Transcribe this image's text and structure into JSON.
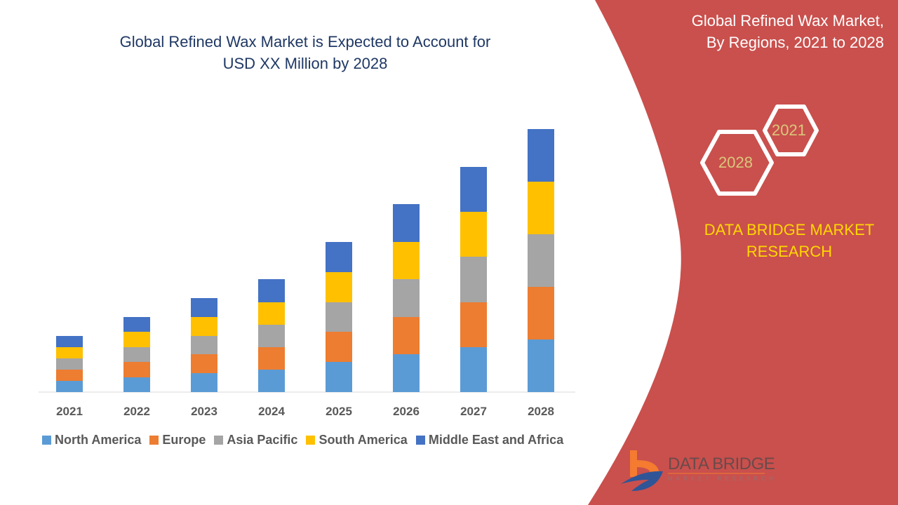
{
  "chart_data": {
    "type": "bar",
    "stacked": true,
    "title": "Global Refined Wax Market is Expected to Account for USD XX Million by 2028",
    "title_lines": [
      "Global Refined Wax Market is Expected to Account for",
      "USD XX Million by 2028"
    ],
    "categories": [
      "2021",
      "2022",
      "2023",
      "2024",
      "2025",
      "2026",
      "2027",
      "2028"
    ],
    "series": [
      {
        "name": "North America",
        "color": "#5b9bd5",
        "values": [
          16,
          21,
          27,
          32,
          43,
          54,
          64,
          75
        ]
      },
      {
        "name": "Europe",
        "color": "#ed7d31",
        "values": [
          16,
          22,
          27,
          32,
          43,
          53,
          64,
          75
        ]
      },
      {
        "name": "Asia Pacific",
        "color": "#a5a5a5",
        "values": [
          16,
          21,
          26,
          32,
          42,
          54,
          65,
          75
        ]
      },
      {
        "name": "South America",
        "color": "#ffc000",
        "values": [
          16,
          22,
          27,
          32,
          43,
          53,
          64,
          75
        ]
      },
      {
        "name": "Middle East and Africa",
        "color": "#4472c4",
        "values": [
          16,
          21,
          27,
          33,
          43,
          54,
          64,
          75
        ]
      }
    ],
    "xlabel": "",
    "ylabel": "",
    "ylim": [
      0,
      400
    ],
    "grid": false,
    "y_axis_shown": false,
    "legend_position": "bottom"
  },
  "side_panel": {
    "title_lines": [
      "Global Refined Wax Market,",
      "By Regions, 2021 to 2028"
    ],
    "hex_years": [
      "2021",
      "2028"
    ],
    "brand_lines": [
      "DATA BRIDGE MARKET",
      "RESEARCH"
    ],
    "logo_text": "DATA BRIDGE",
    "logo_subtext": "MARKET RESEARCH",
    "panel_color": "#c9504d",
    "brand_color": "#ffd700"
  }
}
